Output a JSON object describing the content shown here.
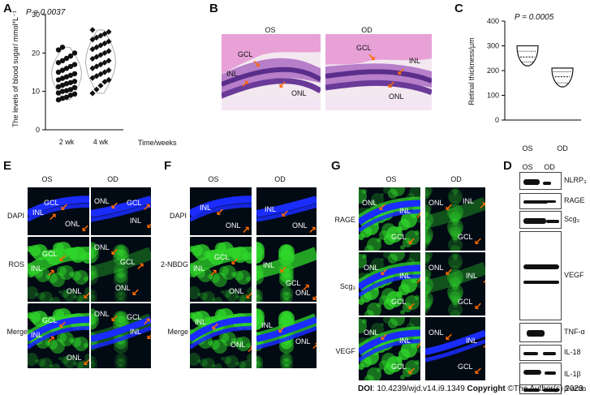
{
  "panels": {
    "A": {
      "letter": "A"
    },
    "B": {
      "letter": "B"
    },
    "C": {
      "letter": "C"
    },
    "D": {
      "letter": "D"
    },
    "E": {
      "letter": "E"
    },
    "F": {
      "letter": "F"
    },
    "G": {
      "letter": "G"
    }
  },
  "chart_data": [
    {
      "type": "scatter",
      "pvalue": "P = 0.0037",
      "ylabel": "The levels of blood sugar/ mmol*L⁻¹",
      "xlabel": "Time/weeks",
      "categories": [
        "2 wk",
        "4 wk"
      ],
      "ylim": [
        0,
        30
      ],
      "yticks": [
        "0",
        "10",
        "20",
        "30"
      ],
      "series": [
        {
          "name": "2 wk",
          "marker": "circle",
          "values": [
            7.8,
            8.2,
            8.5,
            9,
            9.3,
            9.6,
            10,
            10.2,
            10.5,
            11,
            11.2,
            11.6,
            12,
            12.3,
            12.6,
            13,
            13.4,
            13.8,
            14.2,
            14.6,
            15,
            15.5,
            16,
            16.5,
            17,
            17.5,
            18,
            18.6,
            19.2,
            20,
            20.8,
            21.5
          ]
        },
        {
          "name": "4 wk",
          "marker": "diamond",
          "values": [
            9.5,
            10.5,
            11.5,
            12.5,
            13,
            13.5,
            14,
            14.5,
            15,
            15.5,
            16,
            16.5,
            17,
            17.5,
            18,
            18.5,
            19,
            19.5,
            20,
            20.5,
            21,
            21.5,
            22,
            22.5,
            23,
            23.5,
            24,
            24.5,
            25,
            25.5,
            26
          ]
        }
      ]
    },
    {
      "type": "violin",
      "pvalue": "P = 0.0005",
      "ylabel": "Retinal thickness/μm",
      "categories": [
        "OS",
        "OD"
      ],
      "ylim": [
        0,
        400
      ],
      "yticks": [
        "0",
        "100",
        "200",
        "300",
        "400"
      ],
      "series": [
        {
          "name": "OS",
          "min": 220,
          "q1": 235,
          "median": 255,
          "q3": 278,
          "max": 300
        },
        {
          "name": "OD",
          "min": 135,
          "q1": 150,
          "median": 175,
          "q3": 195,
          "max": 210
        }
      ]
    }
  ],
  "histology": {
    "cols": [
      "OS",
      "OD"
    ],
    "os_labels": [
      "GCL",
      "INL",
      "ONL"
    ],
    "od_labels": [
      "GCL",
      "INL",
      "ONL"
    ]
  },
  "fluor": {
    "cols": [
      "OS",
      "OD"
    ],
    "E_rows": [
      "DAPI",
      "ROS",
      "Merge"
    ],
    "F_rows": [
      "DAPI",
      "2-NBDG",
      "Merge"
    ],
    "G_rows": [
      "RAGE",
      "Scg₃",
      "VEGF"
    ],
    "layer": {
      "gcl": "GCL",
      "inl": "INL",
      "onl": "ONL"
    }
  },
  "blot": {
    "cols": [
      "OS",
      "OD"
    ],
    "rows": [
      "NLRP₃",
      "RAGE",
      "Scg₃",
      "VEGF",
      "TNF-α",
      "IL-18",
      "IL-1β",
      "β-actin"
    ]
  },
  "footer": {
    "doi_label": "DOI",
    "doi_value": ": 10.4239/wjd.v14.i9.1349",
    "copyright_label": "Copyright",
    "copyright_value": " ©The Author(s) 2023."
  },
  "colors": {
    "arrow": "#ff6a00",
    "dapi": "#1a2cff",
    "green": "#2fd62a",
    "he_pink": "#e6a3d6",
    "he_purple": "#7e4aa8"
  }
}
